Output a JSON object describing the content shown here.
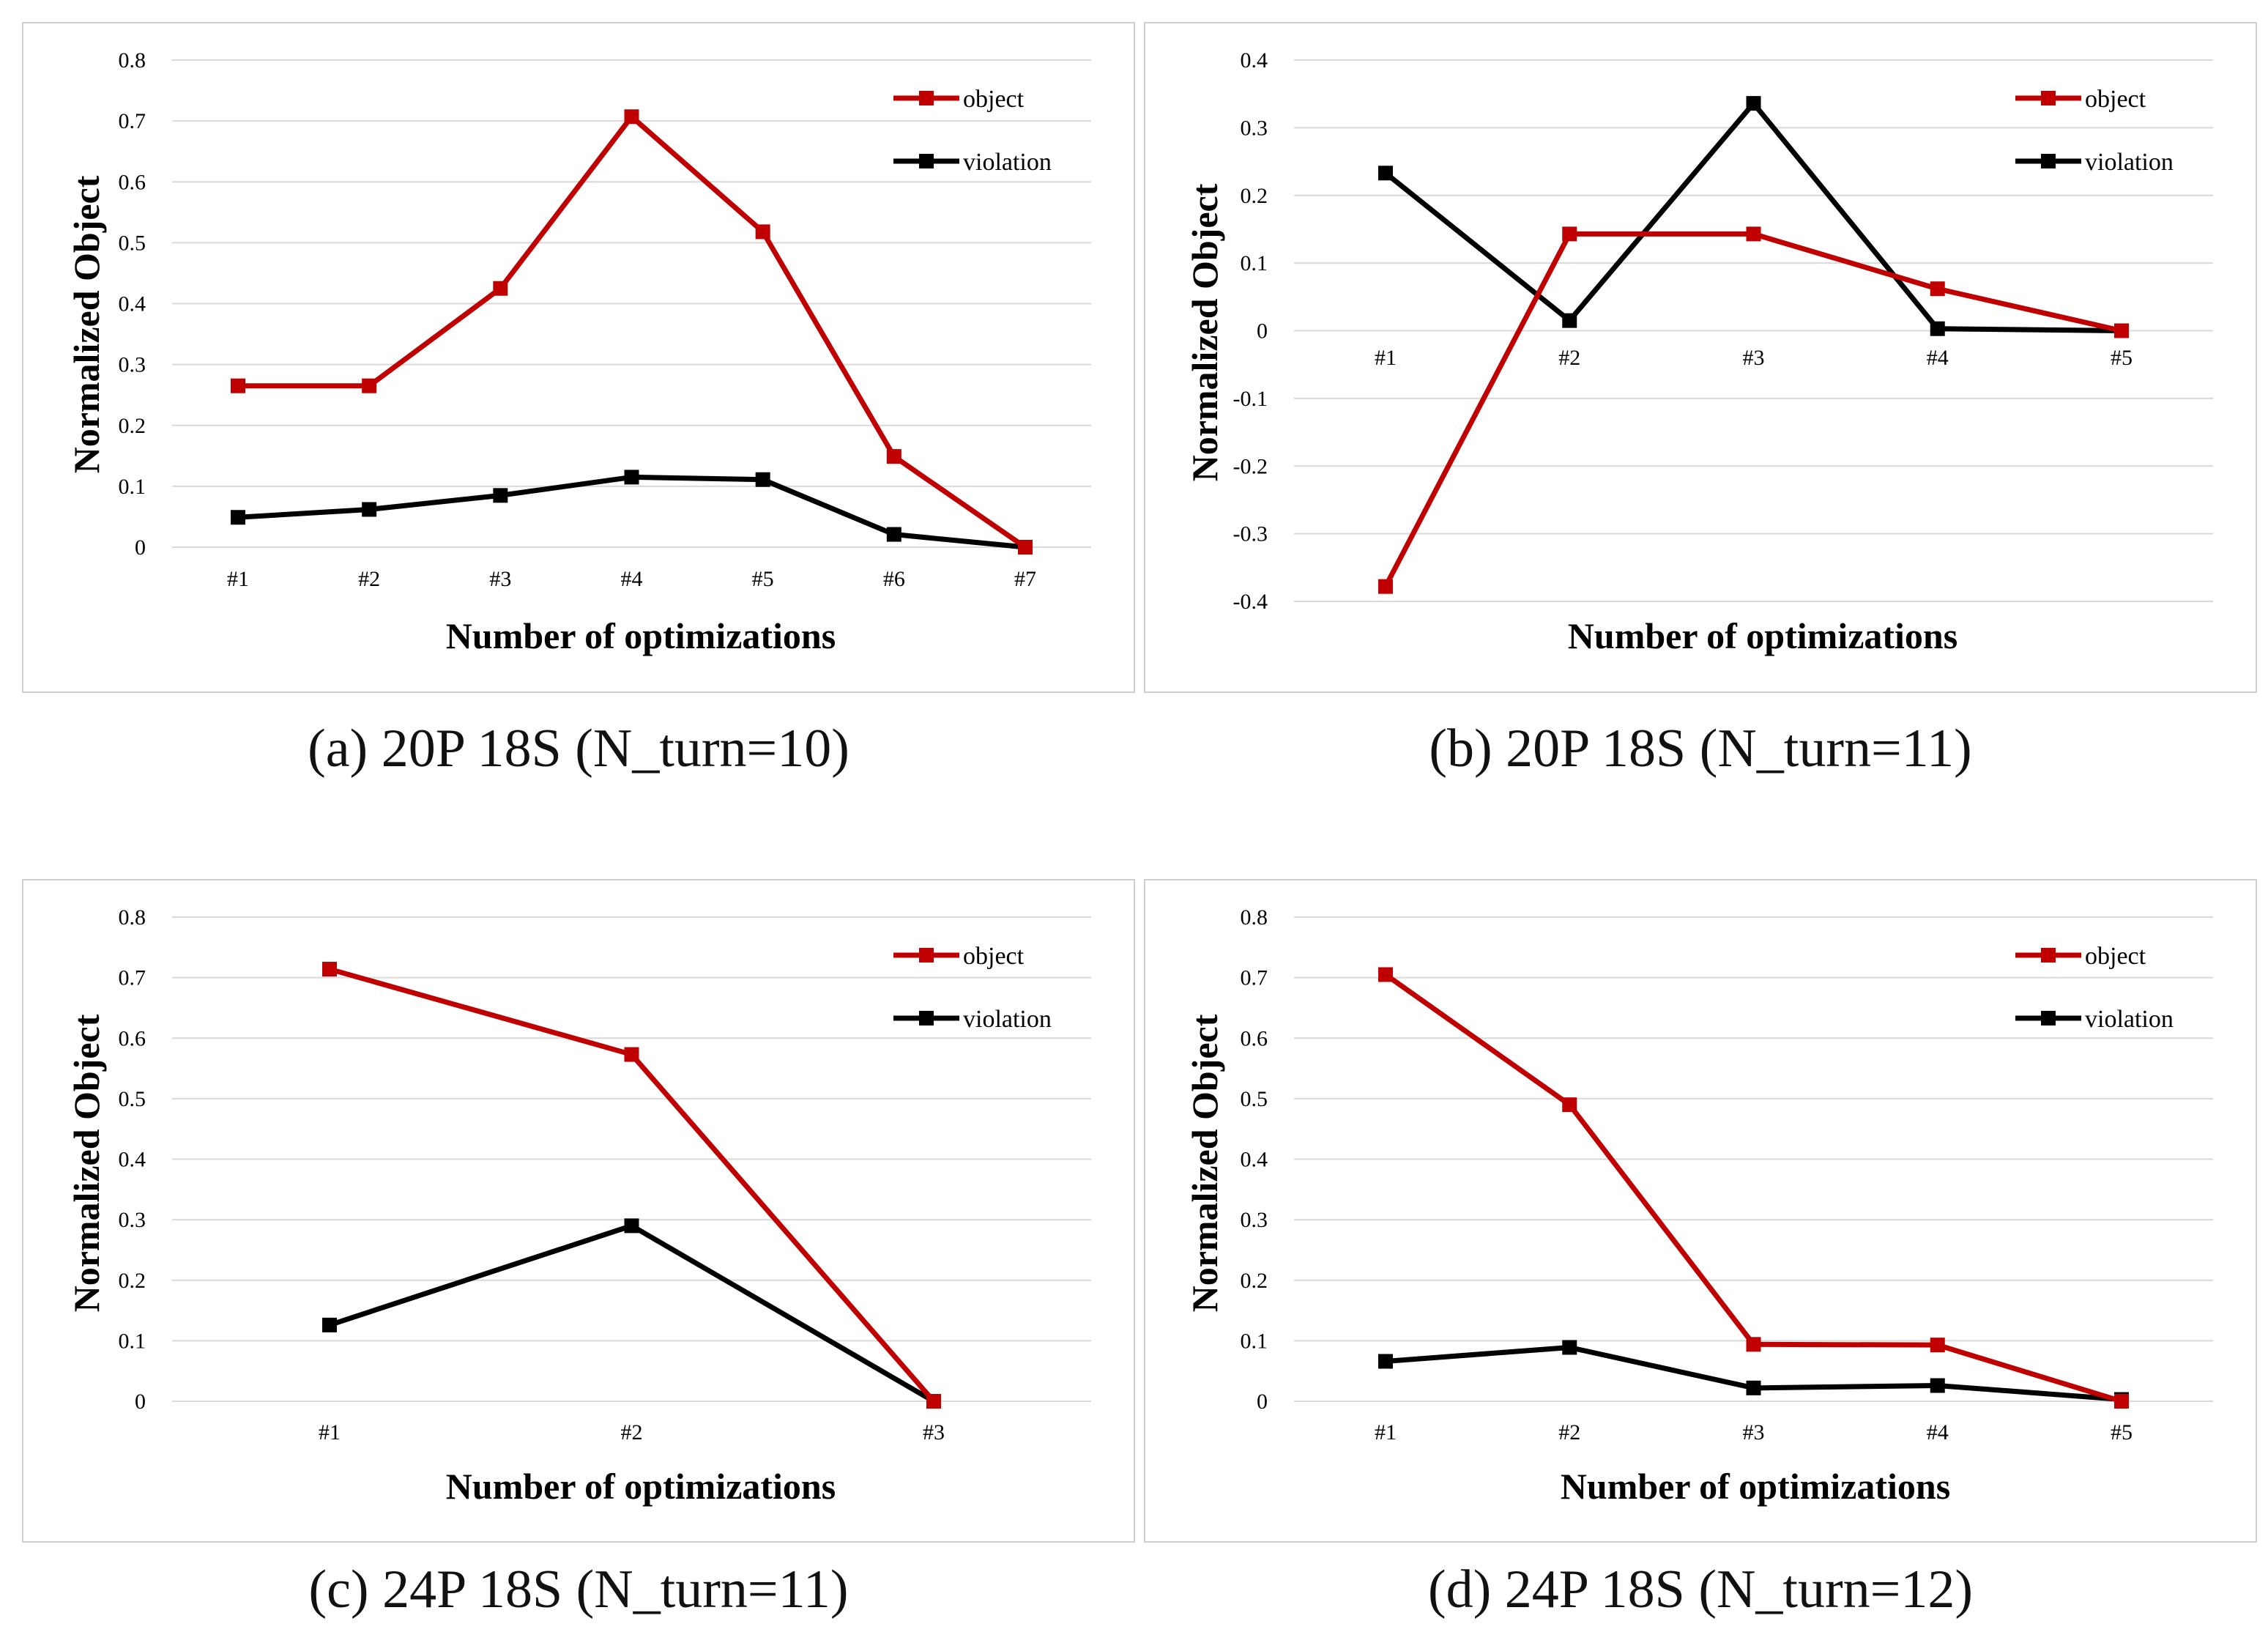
{
  "colors": {
    "object": "#c00000",
    "violation": "#000000",
    "grid": "#d9d9d9",
    "frame": "#cfcfcf"
  },
  "chart_data": [
    {
      "type": "line",
      "caption": "(a) 20P 18S (N_turn=10)",
      "xlabel": "Number of optimizations",
      "ylabel": "Normalized Object",
      "categories": [
        "#1",
        "#2",
        "#3",
        "#4",
        "#5",
        "#6",
        "#7"
      ],
      "ylim": [
        0,
        0.8
      ],
      "yticks": [
        0,
        0.1,
        0.2,
        0.3,
        0.4,
        0.5,
        0.6,
        0.7,
        0.8
      ],
      "ytick_labels": [
        "0",
        "0.1",
        "0.2",
        "0.3",
        "0.4",
        "0.5",
        "0.6",
        "0.7",
        "0.8"
      ],
      "legend_position": "top-right",
      "series": [
        {
          "name": "object",
          "color": "#c00000",
          "values": [
            0.265,
            0.265,
            0.425,
            0.707,
            0.518,
            0.149,
            0.0
          ]
        },
        {
          "name": "violation",
          "color": "#000000",
          "values": [
            0.049,
            0.062,
            0.085,
            0.115,
            0.111,
            0.021,
            0.0
          ]
        }
      ]
    },
    {
      "type": "line",
      "caption": "(b) 20P 18S (N_turn=11)",
      "xlabel": "Number of optimizations",
      "ylabel": "Normalized Object",
      "categories": [
        "#1",
        "#2",
        "#3",
        "#4",
        "#5"
      ],
      "ylim": [
        -0.4,
        0.4
      ],
      "yticks": [
        -0.4,
        -0.3,
        -0.2,
        -0.1,
        0,
        0.1,
        0.2,
        0.3,
        0.4
      ],
      "ytick_labels": [
        "-0.4",
        "-0.3",
        "-0.2",
        "-0.1",
        "0",
        "0.1",
        "0.2",
        "0.3",
        "0.4"
      ],
      "legend_position": "top-right",
      "series": [
        {
          "name": "object",
          "color": "#c00000",
          "values": [
            -0.378,
            0.143,
            0.143,
            0.062,
            0.0
          ]
        },
        {
          "name": "violation",
          "color": "#000000",
          "values": [
            0.233,
            0.015,
            0.336,
            0.003,
            0.0
          ]
        }
      ]
    },
    {
      "type": "line",
      "caption": "(c) 24P 18S (N_turn=11)",
      "xlabel": "Number of optimizations",
      "ylabel": "Normalized Object",
      "categories": [
        "#1",
        "#2",
        "#3"
      ],
      "ylim": [
        0,
        0.8
      ],
      "yticks": [
        0,
        0.1,
        0.2,
        0.3,
        0.4,
        0.5,
        0.6,
        0.7,
        0.8
      ],
      "ytick_labels": [
        "0",
        "0.1",
        "0.2",
        "0.3",
        "0.4",
        "0.5",
        "0.6",
        "0.7",
        "0.8"
      ],
      "legend_position": "top-right",
      "series": [
        {
          "name": "object",
          "color": "#c00000",
          "values": [
            0.714,
            0.573,
            0.0
          ]
        },
        {
          "name": "violation",
          "color": "#000000",
          "values": [
            0.126,
            0.29,
            0.0
          ]
        }
      ]
    },
    {
      "type": "line",
      "caption": "(d) 24P 18S (N_turn=12)",
      "xlabel": "Number of optimizations",
      "ylabel": "Normalized Object",
      "categories": [
        "#1",
        "#2",
        "#3",
        "#4",
        "#5"
      ],
      "ylim": [
        0,
        0.8
      ],
      "yticks": [
        0,
        0.1,
        0.2,
        0.3,
        0.4,
        0.5,
        0.6,
        0.7,
        0.8
      ],
      "ytick_labels": [
        "0",
        "0.1",
        "0.2",
        "0.3",
        "0.4",
        "0.5",
        "0.6",
        "0.7",
        "0.8"
      ],
      "legend_position": "top-right",
      "series": [
        {
          "name": "object",
          "color": "#c00000",
          "values": [
            0.705,
            0.49,
            0.094,
            0.093,
            0.0
          ]
        },
        {
          "name": "violation",
          "color": "#000000",
          "values": [
            0.066,
            0.089,
            0.022,
            0.026,
            0.003
          ]
        }
      ]
    }
  ]
}
